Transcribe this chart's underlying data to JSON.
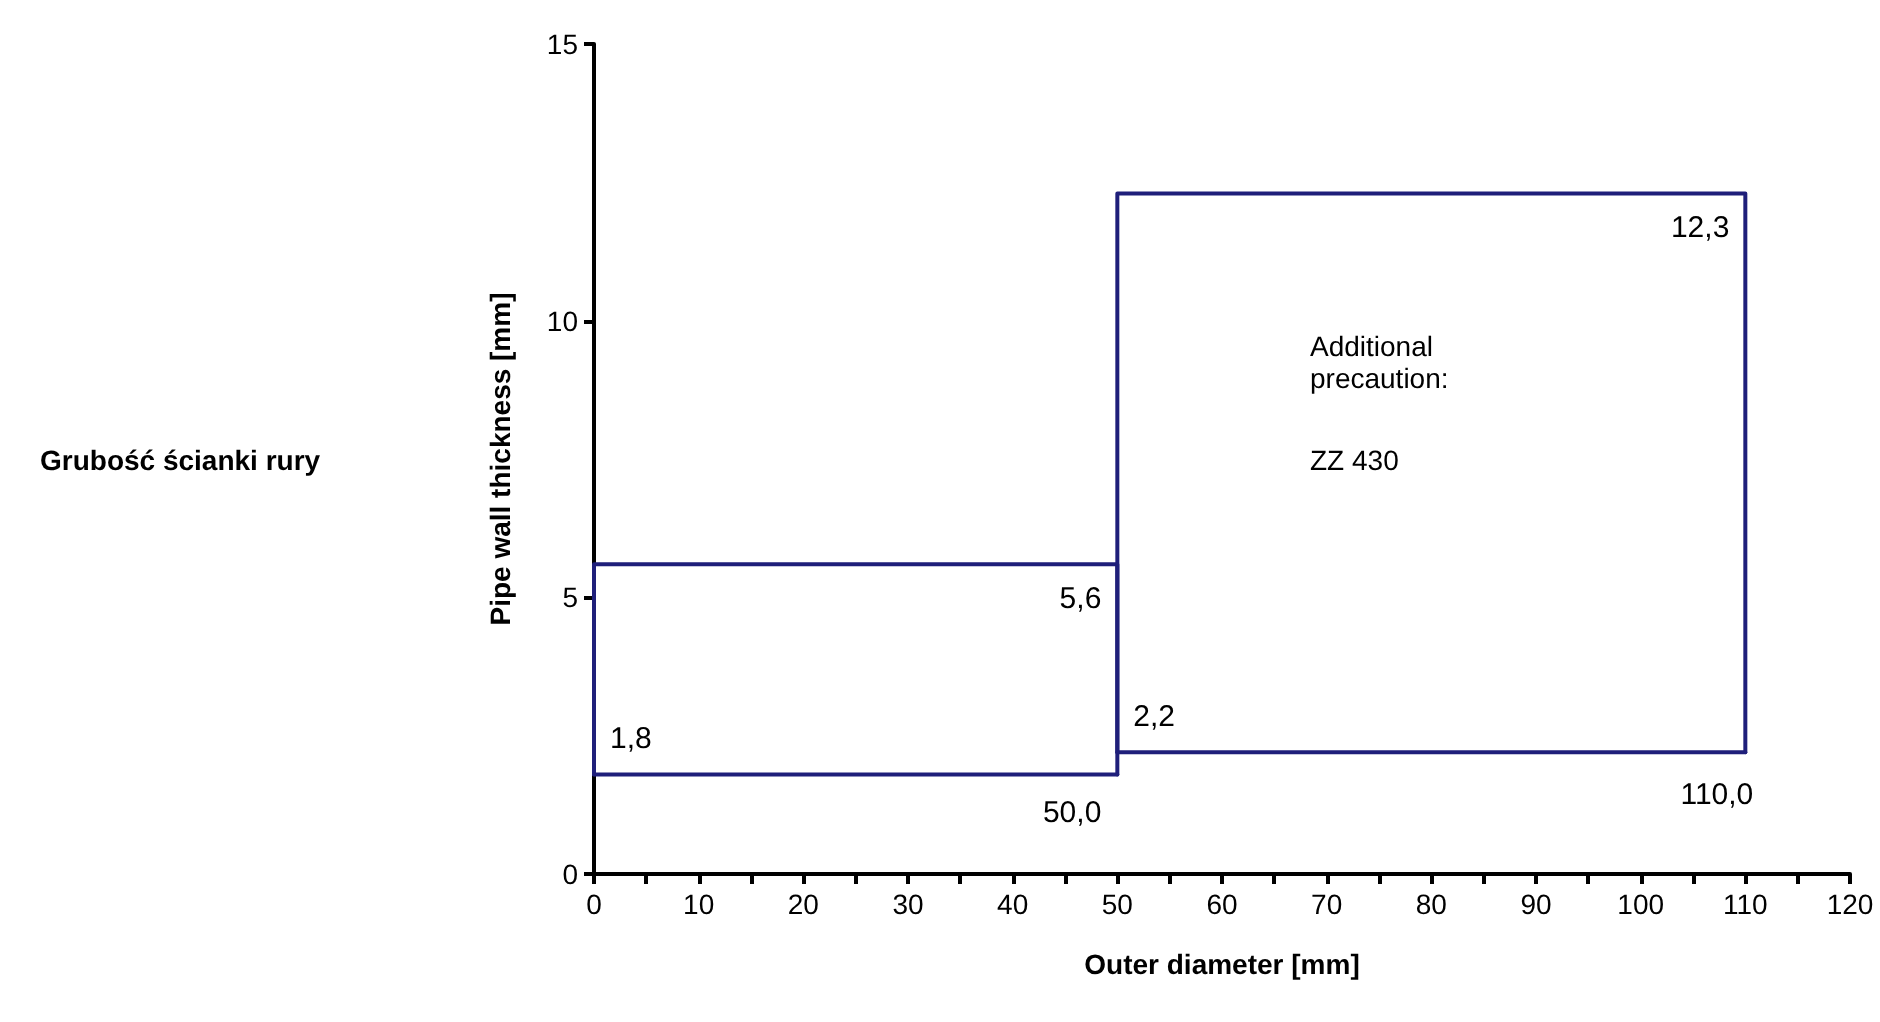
{
  "chart_data": {
    "type": "line",
    "xlabel": "Outer diameter [mm]",
    "ylabel": "Pipe wall thickness [mm]",
    "series": [
      {
        "color": "#1f1f7a",
        "x": [
          0,
          0,
          50,
          50
        ],
        "values": [
          1.8,
          5.6,
          5.6,
          1.8
        ]
      },
      {
        "color": "#1f1f7a",
        "x": [
          0,
          50
        ],
        "values": [
          1.8,
          1.8
        ]
      },
      {
        "color": "#1f1f7a",
        "x": [
          50,
          50,
          110,
          110
        ],
        "values": [
          2.2,
          12.3,
          12.3,
          2.2
        ]
      },
      {
        "color": "#1f1f7a",
        "x": [
          50,
          110
        ],
        "values": [
          2.2,
          2.2
        ]
      }
    ],
    "annotations": [
      "Grubość ścianki rury",
      {
        "text": "1,8",
        "x": 0,
        "y": 1.8
      },
      {
        "text": "5,6",
        "x": 50,
        "y": 5.6
      },
      {
        "text": "50,0",
        "x": 50,
        "y": 1.8
      },
      {
        "text": "2,2",
        "x": 50,
        "y": 2.2
      },
      {
        "text": "12,3",
        "x": 110,
        "y": 12.3
      },
      {
        "text": "110,0",
        "x": 110,
        "y": 2.2
      },
      "Additional\nprecaution:",
      "ZZ 430"
    ],
    "xlim": [
      0,
      120
    ],
    "xticks": [
      0,
      {
        "value": 5,
        "label": null
      },
      10,
      {
        "value": 15,
        "label": null
      },
      20,
      {
        "value": 25,
        "label": null
      },
      30,
      {
        "value": 35,
        "label": null
      },
      40,
      {
        "value": 45,
        "label": null
      },
      50,
      {
        "value": 55,
        "label": null
      },
      60,
      {
        "value": 65,
        "label": null
      },
      70,
      {
        "value": 75,
        "label": null
      },
      80,
      {
        "value": 85,
        "label": null
      },
      90,
      {
        "value": 95,
        "label": null
      },
      100,
      {
        "value": 105,
        "label": null
      },
      110,
      {
        "value": 115,
        "label": null
      },
      120
    ],
    "ylim": [
      0,
      15
    ],
    "yticks": [
      0,
      5,
      10,
      15
    ],
    "grid": false,
    "marker": "none",
    "line_style": "solid"
  }
}
